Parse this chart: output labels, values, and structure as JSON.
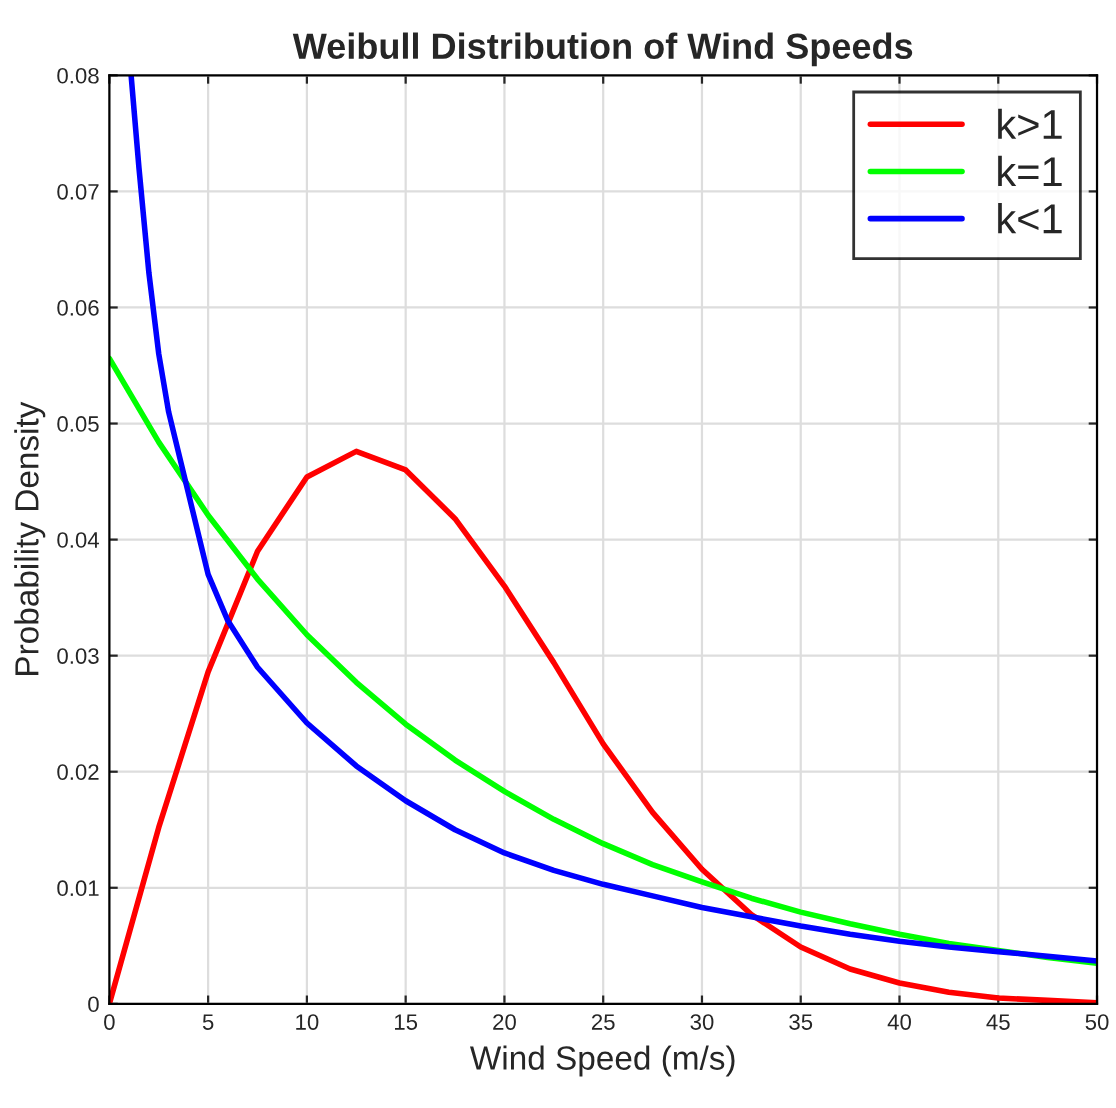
{
  "chart_data": {
    "type": "line",
    "title": "Weibull Distribution of Wind Speeds",
    "xlabel": "Wind Speed (m/s)",
    "ylabel": "Probability Density",
    "xlim": [
      0,
      50
    ],
    "xticks": [
      0,
      5,
      10,
      15,
      20,
      25,
      30,
      35,
      40,
      45,
      50
    ],
    "ylim": [
      0,
      0.08
    ],
    "yticks": [
      0,
      0.01,
      0.02,
      0.03,
      0.04,
      0.05,
      0.06,
      0.07,
      0.08
    ],
    "grid": true,
    "legend": "top right",
    "marker": "none",
    "line_style": "solid",
    "series": [
      {
        "name": "k>1",
        "color": "#ff0000",
        "x": [
          0,
          2.5,
          5,
          7.5,
          10,
          12.5,
          15,
          17.5,
          20,
          22.5,
          25,
          27.5,
          30,
          32.5,
          35,
          37.5,
          40,
          42.5,
          45,
          47.5,
          50
        ],
        "values": [
          0,
          0.0152,
          0.0286,
          0.039,
          0.0454,
          0.0476,
          0.046,
          0.0418,
          0.036,
          0.0294,
          0.0224,
          0.0165,
          0.0116,
          0.0077,
          0.0049,
          0.003,
          0.0018,
          0.001,
          0.0005,
          0.0003,
          0.0001
        ]
      },
      {
        "name": "k=1",
        "color": "#00ff00",
        "x": [
          0,
          2.5,
          5,
          7.5,
          10,
          12.5,
          15,
          17.5,
          20,
          22.5,
          25,
          27.5,
          30,
          32.5,
          35,
          37.5,
          40,
          42.5,
          45,
          47.5,
          50
        ],
        "values": [
          0.0556,
          0.0484,
          0.0421,
          0.0366,
          0.0318,
          0.0277,
          0.0241,
          0.021,
          0.0183,
          0.0159,
          0.0138,
          0.012,
          0.0105,
          0.0091,
          0.0079,
          0.0069,
          0.006,
          0.0052,
          0.0046,
          0.004,
          0.0035
        ]
      },
      {
        "name": "k<1",
        "color": "#0000ff",
        "x": [
          1.1,
          1.5,
          2,
          2.5,
          3,
          4,
          5,
          6,
          7.5,
          10,
          12.5,
          15,
          17.5,
          20,
          22.5,
          25,
          27.5,
          30,
          32.5,
          35,
          37.5,
          40,
          42.5,
          45,
          47.5,
          50
        ],
        "values": [
          0.08,
          0.072,
          0.063,
          0.056,
          0.051,
          0.044,
          0.037,
          0.033,
          0.029,
          0.0242,
          0.0205,
          0.0175,
          0.015,
          0.013,
          0.0115,
          0.0103,
          0.0093,
          0.0083,
          0.0075,
          0.0067,
          0.006,
          0.0054,
          0.0049,
          0.0045,
          0.0041,
          0.0037
        ]
      }
    ]
  }
}
